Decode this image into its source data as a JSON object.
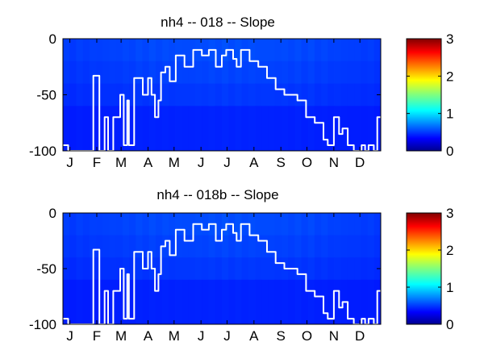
{
  "chart_data": [
    {
      "type": "heatmap",
      "title": "nh4 -- 018 -- Slope",
      "months": [
        "J",
        "F",
        "M",
        "A",
        "M",
        "J",
        "J",
        "A",
        "S",
        "O",
        "N",
        "D"
      ],
      "y_ticks": [
        0,
        -50,
        -100
      ],
      "ylim": [
        -100,
        0
      ],
      "xlim_days": [
        0,
        366
      ],
      "colorbar": {
        "ticks": [
          0,
          1,
          2,
          3
        ],
        "range": [
          0,
          3
        ],
        "colormap": "jet"
      },
      "value_bands": [
        {
          "depth_range": [
            0,
            -20
          ],
          "value": 0.3
        },
        {
          "depth_range": [
            -20,
            -40
          ],
          "value": 0.26
        },
        {
          "depth_range": [
            -40,
            -60
          ],
          "value": 0.21
        },
        {
          "depth_range": [
            -60,
            -100
          ],
          "value": 0.12
        }
      ],
      "white_line": {
        "x_day": [
          0,
          6,
          6,
          12,
          12,
          18,
          18,
          24,
          24,
          30,
          30,
          35,
          35,
          42,
          42,
          48,
          48,
          52,
          52,
          55,
          55,
          58,
          58,
          61,
          61,
          66,
          66,
          70,
          70,
          74,
          74,
          76,
          76,
          82,
          82,
          86,
          86,
          92,
          92,
          98,
          98,
          102,
          102,
          106,
          106,
          110,
          110,
          113,
          113,
          118,
          118,
          123,
          123,
          130,
          130,
          140,
          140,
          150,
          150,
          160,
          160,
          168,
          168,
          176,
          176,
          183,
          183,
          188,
          188,
          196,
          196,
          200,
          200,
          205,
          205,
          215,
          215,
          225,
          225,
          235,
          235,
          245,
          245,
          255,
          255,
          262,
          262,
          270,
          270,
          280,
          280,
          290,
          290,
          300,
          300,
          305,
          305,
          312,
          312,
          318,
          318,
          322,
          322,
          328,
          328,
          335,
          335,
          344,
          344,
          348,
          348,
          352,
          352,
          358,
          358,
          362,
          362,
          366
        ],
        "y_depth": [
          -95,
          -95,
          -100,
          -100,
          -100,
          -100,
          -100,
          -100,
          -100,
          -100,
          -100,
          -100,
          -33,
          -33,
          -100,
          -100,
          -70,
          -70,
          -100,
          -100,
          -100,
          -100,
          -70,
          -70,
          -70,
          -70,
          -50,
          -50,
          -95,
          -95,
          -55,
          -55,
          -95,
          -95,
          -35,
          -35,
          -35,
          -35,
          -50,
          -50,
          -35,
          -35,
          -50,
          -50,
          -70,
          -70,
          -55,
          -55,
          -30,
          -30,
          -25,
          -25,
          -38,
          -38,
          -15,
          -15,
          -25,
          -25,
          -10,
          -10,
          -15,
          -15,
          -10,
          -10,
          -25,
          -25,
          -15,
          -15,
          -10,
          -10,
          -18,
          -18,
          -25,
          -25,
          -10,
          -10,
          -20,
          -20,
          -25,
          -25,
          -35,
          -35,
          -45,
          -45,
          -50,
          -50,
          -50,
          -50,
          -55,
          -55,
          -70,
          -70,
          -75,
          -75,
          -90,
          -90,
          -95,
          -95,
          -70,
          -70,
          -85,
          -85,
          -80,
          -80,
          -95,
          -95,
          -100,
          -100,
          -95,
          -95,
          -100,
          -100,
          -95,
          -95,
          -100,
          -100,
          -70,
          -70
        ]
      }
    },
    {
      "type": "heatmap",
      "title": "nh4 -- 018b -- Slope",
      "months": [
        "J",
        "F",
        "M",
        "A",
        "M",
        "J",
        "J",
        "A",
        "S",
        "O",
        "N",
        "D"
      ],
      "y_ticks": [
        0,
        -50,
        -100
      ],
      "ylim": [
        -100,
        0
      ],
      "xlim_days": [
        0,
        366
      ],
      "colorbar": {
        "ticks": [
          0,
          1,
          2,
          3
        ],
        "range": [
          0,
          3
        ],
        "colormap": "jet"
      },
      "value_bands": [
        {
          "depth_range": [
            0,
            -20
          ],
          "value": 0.3
        },
        {
          "depth_range": [
            -20,
            -40
          ],
          "value": 0.26
        },
        {
          "depth_range": [
            -40,
            -60
          ],
          "value": 0.21
        },
        {
          "depth_range": [
            -60,
            -100
          ],
          "value": 0.12
        }
      ],
      "white_line": {
        "x_day": [
          0,
          6,
          6,
          12,
          12,
          18,
          18,
          24,
          24,
          30,
          30,
          35,
          35,
          42,
          42,
          48,
          48,
          52,
          52,
          55,
          55,
          58,
          58,
          61,
          61,
          66,
          66,
          70,
          70,
          74,
          74,
          76,
          76,
          82,
          82,
          86,
          86,
          92,
          92,
          98,
          98,
          102,
          102,
          106,
          106,
          110,
          110,
          113,
          113,
          118,
          118,
          123,
          123,
          130,
          130,
          140,
          140,
          150,
          150,
          160,
          160,
          168,
          168,
          176,
          176,
          183,
          183,
          188,
          188,
          196,
          196,
          200,
          200,
          205,
          205,
          215,
          215,
          225,
          225,
          235,
          235,
          245,
          245,
          255,
          255,
          262,
          262,
          270,
          270,
          280,
          280,
          290,
          290,
          300,
          300,
          305,
          305,
          312,
          312,
          318,
          318,
          322,
          322,
          328,
          328,
          335,
          335,
          344,
          344,
          348,
          348,
          352,
          352,
          358,
          358,
          362,
          362,
          366
        ],
        "y_depth": [
          -95,
          -95,
          -100,
          -100,
          -100,
          -100,
          -100,
          -100,
          -100,
          -100,
          -100,
          -100,
          -33,
          -33,
          -100,
          -100,
          -70,
          -70,
          -100,
          -100,
          -100,
          -100,
          -70,
          -70,
          -70,
          -70,
          -50,
          -50,
          -95,
          -95,
          -55,
          -55,
          -95,
          -95,
          -35,
          -35,
          -35,
          -35,
          -50,
          -50,
          -35,
          -35,
          -50,
          -50,
          -70,
          -70,
          -55,
          -55,
          -30,
          -30,
          -25,
          -25,
          -38,
          -38,
          -15,
          -15,
          -25,
          -25,
          -10,
          -10,
          -15,
          -15,
          -10,
          -10,
          -25,
          -25,
          -15,
          -15,
          -10,
          -10,
          -18,
          -18,
          -25,
          -25,
          -10,
          -10,
          -20,
          -20,
          -25,
          -25,
          -35,
          -35,
          -45,
          -45,
          -50,
          -50,
          -50,
          -50,
          -55,
          -55,
          -70,
          -70,
          -75,
          -75,
          -90,
          -90,
          -95,
          -95,
          -70,
          -70,
          -85,
          -85,
          -80,
          -80,
          -95,
          -95,
          -100,
          -100,
          -95,
          -95,
          -100,
          -100,
          -95,
          -95,
          -100,
          -100,
          -70,
          -70
        ]
      }
    }
  ]
}
